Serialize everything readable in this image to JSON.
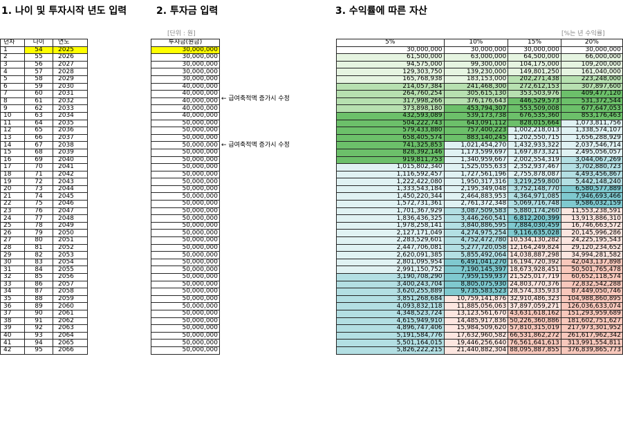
{
  "titles": {
    "section1": "1. 나이 및 투자시작 년도 입력",
    "section2": "2. 투자금 입력",
    "section3": "3. 수익률에 따른 자산"
  },
  "units": {
    "investment": "[단위 : 원]",
    "rate": "[%는 년 수익률]"
  },
  "headers": {
    "year_no": "년차",
    "age": "나이",
    "year": "연도",
    "investment": "투자금(원금)",
    "rates": [
      "5%",
      "10%",
      "15%",
      "20%"
    ]
  },
  "notes": [
    "← 급여축적액 증가시 수정",
    "← 급여축적액 증가시 수정"
  ],
  "colors": {
    "highlight": "#ffff00",
    "green_light": "#e6f4e1",
    "green_mid": "#b7e0b0",
    "green_dark": "#6cc06a",
    "teal_light": "#e0f2f3",
    "teal_mid": "#b3dfe3",
    "teal_dark": "#7fc9cf",
    "pink_light": "#fce6e0",
    "pink_mid": "#f8c8bc"
  },
  "rows": [
    {
      "n": "1",
      "age": "54",
      "year": "2025",
      "inv": "30,000,000",
      "r": [
        "30,000,000",
        "30,000,000",
        "30,000,000",
        "30,000,000"
      ]
    },
    {
      "n": "2",
      "age": "55",
      "year": "2026",
      "inv": "30,000,000",
      "r": [
        "61,500,000",
        "63,000,000",
        "64,500,000",
        "66,000,000"
      ]
    },
    {
      "n": "3",
      "age": "56",
      "year": "2027",
      "inv": "30,000,000",
      "r": [
        "94,575,000",
        "99,300,000",
        "104,175,000",
        "109,200,000"
      ]
    },
    {
      "n": "4",
      "age": "57",
      "year": "2028",
      "inv": "30,000,000",
      "r": [
        "129,303,750",
        "139,230,000",
        "149,801,250",
        "161,040,000"
      ]
    },
    {
      "n": "5",
      "age": "58",
      "year": "2029",
      "inv": "30,000,000",
      "r": [
        "165,768,938",
        "183,153,000",
        "202,271,438",
        "223,248,000"
      ]
    },
    {
      "n": "6",
      "age": "59",
      "year": "2030",
      "inv": "40,000,000",
      "r": [
        "214,057,384",
        "241,468,300",
        "272,612,153",
        "307,897,600"
      ]
    },
    {
      "n": "7",
      "age": "60",
      "year": "2031",
      "inv": "40,000,000",
      "r": [
        "264,760,254",
        "305,615,130",
        "353,503,976",
        "409,477,120"
      ]
    },
    {
      "n": "8",
      "age": "61",
      "year": "2032",
      "inv": "40,000,000",
      "r": [
        "317,998,266",
        "376,176,643",
        "446,529,573",
        "531,372,544"
      ]
    },
    {
      "n": "9",
      "age": "62",
      "year": "2033",
      "inv": "40,000,000",
      "r": [
        "373,898,180",
        "453,794,307",
        "553,509,008",
        "677,647,053"
      ]
    },
    {
      "n": "10",
      "age": "63",
      "year": "2034",
      "inv": "40,000,000",
      "r": [
        "432,593,089",
        "539,173,738",
        "676,535,360",
        "853,176,463"
      ]
    },
    {
      "n": "11",
      "age": "64",
      "year": "2035",
      "inv": "50,000,000",
      "r": [
        "504,222,743",
        "643,091,112",
        "828,015,664",
        "1,073,811,756"
      ]
    },
    {
      "n": "12",
      "age": "65",
      "year": "2036",
      "inv": "50,000,000",
      "r": [
        "579,433,880",
        "757,400,223",
        "1,002,218,013",
        "1,338,574,107"
      ]
    },
    {
      "n": "13",
      "age": "66",
      "year": "2037",
      "inv": "50,000,000",
      "r": [
        "658,405,574",
        "883,140,245",
        "1,202,550,715",
        "1,656,288,929"
      ]
    },
    {
      "n": "14",
      "age": "67",
      "year": "2038",
      "inv": "50,000,000",
      "r": [
        "741,325,853",
        "1,021,454,270",
        "1,432,933,322",
        "2,037,546,714"
      ]
    },
    {
      "n": "15",
      "age": "68",
      "year": "2039",
      "inv": "50,000,000",
      "r": [
        "828,392,146",
        "1,173,599,697",
        "1,697,873,321",
        "2,495,056,057"
      ]
    },
    {
      "n": "16",
      "age": "69",
      "year": "2040",
      "inv": "50,000,000",
      "r": [
        "919,811,753",
        "1,340,959,667",
        "2,002,554,319",
        "3,044,067,269"
      ]
    },
    {
      "n": "17",
      "age": "70",
      "year": "2041",
      "inv": "50,000,000",
      "r": [
        "1,015,802,340",
        "1,525,055,633",
        "2,352,937,467",
        "3,702,880,723"
      ]
    },
    {
      "n": "18",
      "age": "71",
      "year": "2042",
      "inv": "50,000,000",
      "r": [
        "1,116,592,457",
        "1,727,561,196",
        "2,755,878,087",
        "4,493,456,867"
      ]
    },
    {
      "n": "19",
      "age": "72",
      "year": "2043",
      "inv": "50,000,000",
      "r": [
        "1,222,422,080",
        "1,950,317,316",
        "3,219,259,800",
        "5,442,148,240"
      ]
    },
    {
      "n": "20",
      "age": "73",
      "year": "2044",
      "inv": "50,000,000",
      "r": [
        "1,333,543,184",
        "2,195,349,048",
        "3,752,148,770",
        "6,580,577,889"
      ]
    },
    {
      "n": "21",
      "age": "74",
      "year": "2045",
      "inv": "50,000,000",
      "r": [
        "1,450,220,344",
        "2,464,883,953",
        "4,364,971,085",
        "7,946,693,466"
      ]
    },
    {
      "n": "22",
      "age": "75",
      "year": "2046",
      "inv": "50,000,000",
      "r": [
        "1,572,731,361",
        "2,761,372,348",
        "5,069,716,748",
        "9,586,032,159"
      ]
    },
    {
      "n": "23",
      "age": "76",
      "year": "2047",
      "inv": "50,000,000",
      "r": [
        "1,701,367,929",
        "3,087,509,583",
        "5,880,174,260",
        "11,553,238,591"
      ]
    },
    {
      "n": "24",
      "age": "77",
      "year": "2048",
      "inv": "50,000,000",
      "r": [
        "1,836,436,325",
        "3,446,260,541",
        "6,812,200,399",
        "13,913,886,310"
      ]
    },
    {
      "n": "25",
      "age": "78",
      "year": "2049",
      "inv": "50,000,000",
      "r": [
        "1,978,258,141",
        "3,840,886,595",
        "7,884,030,459",
        "16,746,663,572"
      ]
    },
    {
      "n": "26",
      "age": "79",
      "year": "2050",
      "inv": "50,000,000",
      "r": [
        "2,127,171,049",
        "4,274,975,254",
        "9,116,635,028",
        "20,145,996,286"
      ]
    },
    {
      "n": "27",
      "age": "80",
      "year": "2051",
      "inv": "50,000,000",
      "r": [
        "2,283,529,601",
        "4,752,472,780",
        "10,534,130,282",
        "24,225,195,543"
      ]
    },
    {
      "n": "28",
      "age": "81",
      "year": "2052",
      "inv": "50,000,000",
      "r": [
        "2,447,706,081",
        "5,277,720,058",
        "12,164,249,824",
        "29,120,234,652"
      ]
    },
    {
      "n": "29",
      "age": "82",
      "year": "2053",
      "inv": "50,000,000",
      "r": [
        "2,620,091,385",
        "5,855,492,064",
        "14,038,887,298",
        "34,994,281,582"
      ]
    },
    {
      "n": "30",
      "age": "83",
      "year": "2054",
      "inv": "50,000,000",
      "r": [
        "2,801,095,954",
        "6,491,041,270",
        "16,194,720,392",
        "42,043,137,898"
      ]
    },
    {
      "n": "31",
      "age": "84",
      "year": "2055",
      "inv": "50,000,000",
      "r": [
        "2,991,150,752",
        "7,190,145,397",
        "18,673,928,451",
        "50,501,765,478"
      ]
    },
    {
      "n": "32",
      "age": "85",
      "year": "2056",
      "inv": "50,000,000",
      "r": [
        "3,190,708,290",
        "7,959,159,937",
        "21,525,017,719",
        "60,652,118,574"
      ]
    },
    {
      "n": "33",
      "age": "86",
      "year": "2057",
      "inv": "50,000,000",
      "r": [
        "3,400,243,704",
        "8,805,075,930",
        "24,803,770,376",
        "72,832,542,288"
      ]
    },
    {
      "n": "34",
      "age": "87",
      "year": "2058",
      "inv": "50,000,000",
      "r": [
        "3,620,255,889",
        "9,735,583,523",
        "28,574,335,933",
        "87,449,050,746"
      ]
    },
    {
      "n": "35",
      "age": "88",
      "year": "2059",
      "inv": "50,000,000",
      "r": [
        "3,851,268,684",
        "10,759,141,876",
        "32,910,486,323",
        "104,988,860,895"
      ]
    },
    {
      "n": "36",
      "age": "89",
      "year": "2060",
      "inv": "50,000,000",
      "r": [
        "4,093,832,118",
        "11,885,056,063",
        "37,897,059,271",
        "126,036,633,074"
      ]
    },
    {
      "n": "37",
      "age": "90",
      "year": "2061",
      "inv": "50,000,000",
      "r": [
        "4,348,523,724",
        "13,123,561,670",
        "43,631,618,162",
        "151,293,959,689"
      ]
    },
    {
      "n": "38",
      "age": "91",
      "year": "2062",
      "inv": "50,000,000",
      "r": [
        "4,615,949,910",
        "14,485,917,836",
        "50,226,360,886",
        "181,602,751,627"
      ]
    },
    {
      "n": "39",
      "age": "92",
      "year": "2063",
      "inv": "50,000,000",
      "r": [
        "4,896,747,406",
        "15,984,509,620",
        "57,810,315,019",
        "217,973,301,952"
      ]
    },
    {
      "n": "40",
      "age": "93",
      "year": "2064",
      "inv": "50,000,000",
      "r": [
        "5,191,584,776",
        "17,632,960,582",
        "66,531,862,272",
        "261,617,962,342"
      ]
    },
    {
      "n": "41",
      "age": "94",
      "year": "2065",
      "inv": "50,000,000",
      "r": [
        "5,501,164,015",
        "19,446,256,640",
        "76,561,641,613",
        "313,991,554,811"
      ]
    },
    {
      "n": "42",
      "age": "95",
      "year": "2066",
      "inv": "50,000,000",
      "r": [
        "5,826,222,215",
        "21,440,882,304",
        "88,095,887,855",
        "376,839,865,773"
      ]
    }
  ]
}
